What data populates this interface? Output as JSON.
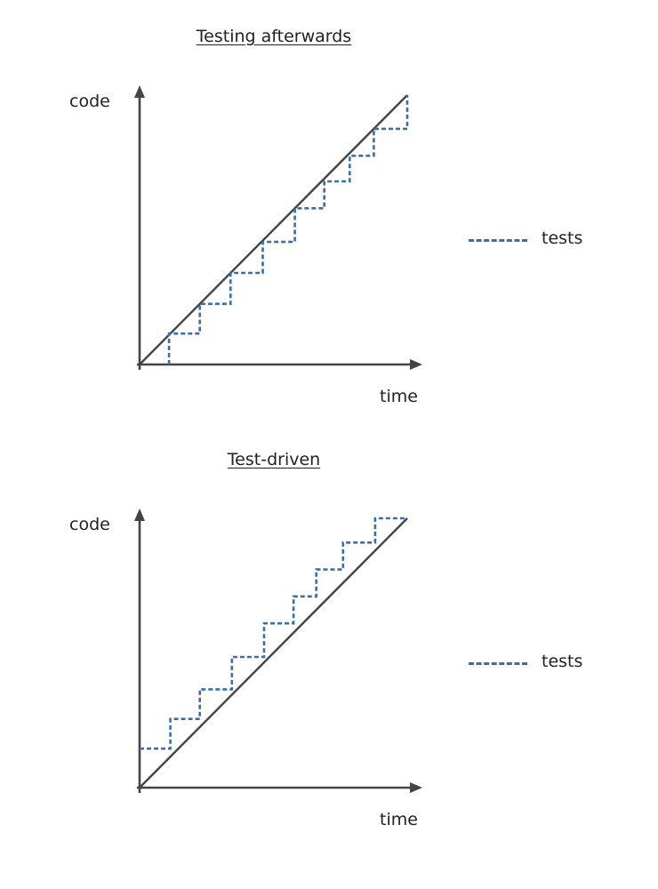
{
  "chart_data": [
    {
      "type": "line",
      "title": "Testing afterwards",
      "xlabel": "time",
      "ylabel": "code",
      "xlim": [
        0,
        10
      ],
      "ylim": [
        0,
        10
      ],
      "legend": "right",
      "series": [
        {
          "name": "",
          "kind": "solid",
          "color": "#444444",
          "points": [
            [
              0,
              0
            ],
            [
              10,
              10
            ]
          ]
        },
        {
          "name": "tests",
          "kind": "dashed-step",
          "color": "#3a6ea5",
          "points": [
            [
              1.1,
              0
            ],
            [
              1.1,
              1.15
            ],
            [
              2.25,
              1.15
            ],
            [
              2.25,
              2.25
            ],
            [
              3.4,
              2.25
            ],
            [
              3.4,
              3.4
            ],
            [
              4.6,
              3.4
            ],
            [
              4.6,
              4.55
            ],
            [
              5.8,
              4.55
            ],
            [
              5.8,
              5.8
            ],
            [
              6.9,
              5.8
            ],
            [
              6.9,
              6.8
            ],
            [
              7.85,
              6.8
            ],
            [
              7.85,
              7.75
            ],
            [
              8.75,
              7.75
            ],
            [
              8.75,
              8.75
            ],
            [
              10,
              8.75
            ],
            [
              10,
              10
            ]
          ]
        }
      ]
    },
    {
      "type": "line",
      "title": "Test-driven",
      "xlabel": "time",
      "ylabel": "code",
      "xlim": [
        0,
        10
      ],
      "ylim": [
        0,
        10
      ],
      "legend": "right",
      "series": [
        {
          "name": "",
          "kind": "solid",
          "color": "#444444",
          "points": [
            [
              0,
              0
            ],
            [
              10,
              10
            ]
          ]
        },
        {
          "name": "tests",
          "kind": "dashed-step",
          "color": "#3a6ea5",
          "points": [
            [
              0,
              1.45
            ],
            [
              1.15,
              1.45
            ],
            [
              1.15,
              2.55
            ],
            [
              2.25,
              2.55
            ],
            [
              2.25,
              3.65
            ],
            [
              3.45,
              3.65
            ],
            [
              3.45,
              4.85
            ],
            [
              4.65,
              4.85
            ],
            [
              4.65,
              6.1
            ],
            [
              5.75,
              6.1
            ],
            [
              5.75,
              7.1
            ],
            [
              6.6,
              7.1
            ],
            [
              6.6,
              8.1
            ],
            [
              7.6,
              8.1
            ],
            [
              7.6,
              9.1
            ],
            [
              8.8,
              9.1
            ],
            [
              8.8,
              10
            ],
            [
              10,
              10
            ]
          ]
        }
      ]
    }
  ]
}
